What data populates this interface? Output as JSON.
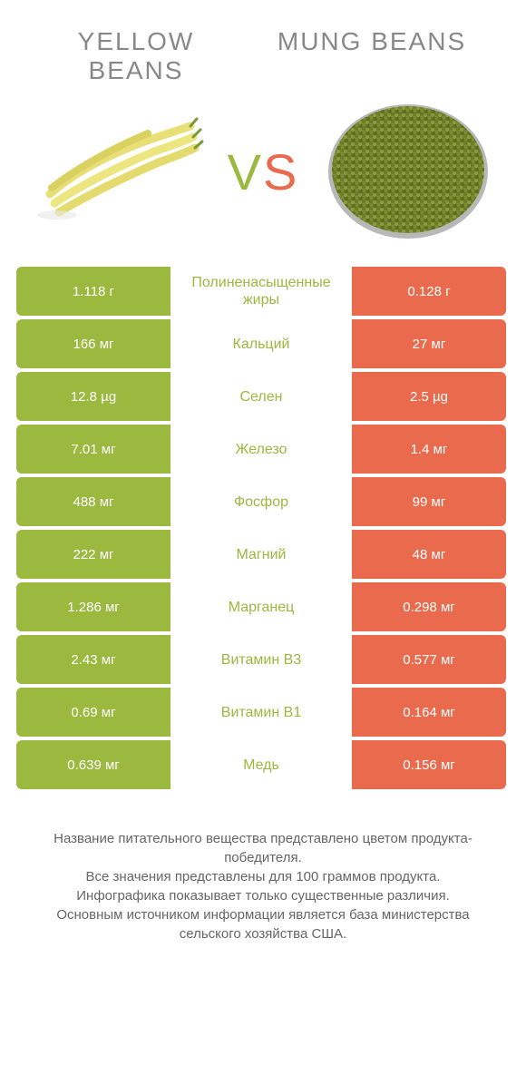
{
  "header": {
    "left_title": "YELLOW\nBEANS",
    "right_title": "MUNG BEANS",
    "vs_v": "V",
    "vs_s": "S"
  },
  "colors": {
    "left_cell": "#9bb83f",
    "right_cell": "#e96a4c",
    "mid_text": "#9bb83f",
    "header_text": "#888888",
    "footer_text": "#666666"
  },
  "rows": [
    {
      "left": "1.118 г",
      "mid": "Полиненасыщенные жиры",
      "right": "0.128 г"
    },
    {
      "left": "166 мг",
      "mid": "Кальций",
      "right": "27 мг"
    },
    {
      "left": "12.8 µg",
      "mid": "Селен",
      "right": "2.5 µg"
    },
    {
      "left": "7.01 мг",
      "mid": "Железо",
      "right": "1.4 мг"
    },
    {
      "left": "488 мг",
      "mid": "Фосфор",
      "right": "99 мг"
    },
    {
      "left": "222 мг",
      "mid": "Магний",
      "right": "48 мг"
    },
    {
      "left": "1.286 мг",
      "mid": "Марганец",
      "right": "0.298 мг"
    },
    {
      "left": "2.43 мг",
      "mid": "Витамин B3",
      "right": "0.577 мг"
    },
    {
      "left": "0.69 мг",
      "mid": "Витамин B1",
      "right": "0.164 мг"
    },
    {
      "left": "0.639 мг",
      "mid": "Медь",
      "right": "0.156 мг"
    }
  ],
  "footer": {
    "line1": "Название питательного вещества представлено цветом продукта-победителя.",
    "line2": "Все значения представлены для 100 граммов продукта.",
    "line3": "Инфографика показывает только существенные различия.",
    "line4": "Основным источником информации является база министерства сельского хозяйства США."
  }
}
